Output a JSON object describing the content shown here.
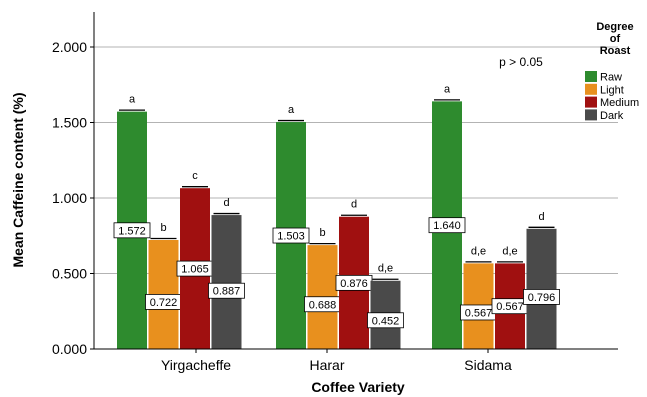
{
  "chart_data": {
    "type": "bar",
    "xlabel": "Coffee Variety",
    "ylabel": "Mean Caffeine content (%)",
    "ylim": [
      0,
      2.2
    ],
    "yticks": [
      "0.000",
      "0.500",
      "1.000",
      "1.500",
      "2.000"
    ],
    "ytick_values": [
      0,
      0.5,
      1.0,
      1.5,
      2.0
    ],
    "grid": true,
    "categories": [
      "Yirgacheffe",
      "Harar",
      "Sidama"
    ],
    "legend": {
      "title_lines": [
        "Degree",
        "of",
        "Roast"
      ],
      "placement": "right"
    },
    "annotation": "p > 0.05",
    "series": [
      {
        "name": "Raw",
        "color": "#2e8b2e",
        "values": [
          1.572,
          1.503,
          1.64
        ],
        "value_labels": [
          "1.572",
          "1.503",
          "1.640"
        ],
        "letters": [
          "a",
          "a",
          "a"
        ]
      },
      {
        "name": "Light",
        "color": "#e8901e",
        "values": [
          0.722,
          0.688,
          0.567
        ],
        "value_labels": [
          "0.722",
          "0.688",
          "0.567"
        ],
        "letters": [
          "b",
          "b",
          "d,e"
        ]
      },
      {
        "name": "Medium",
        "color": "#a01010",
        "values": [
          1.065,
          0.876,
          0.567
        ],
        "value_labels": [
          "1.065",
          "0.876",
          "0.567"
        ],
        "letters": [
          "c",
          "d",
          "d,e"
        ]
      },
      {
        "name": "Dark",
        "color": "#4a4a4a",
        "values": [
          0.887,
          0.452,
          0.796
        ],
        "value_labels": [
          "0.887",
          "0.452",
          "0.796"
        ],
        "letters": [
          "d",
          "d,e",
          "d"
        ]
      }
    ]
  }
}
